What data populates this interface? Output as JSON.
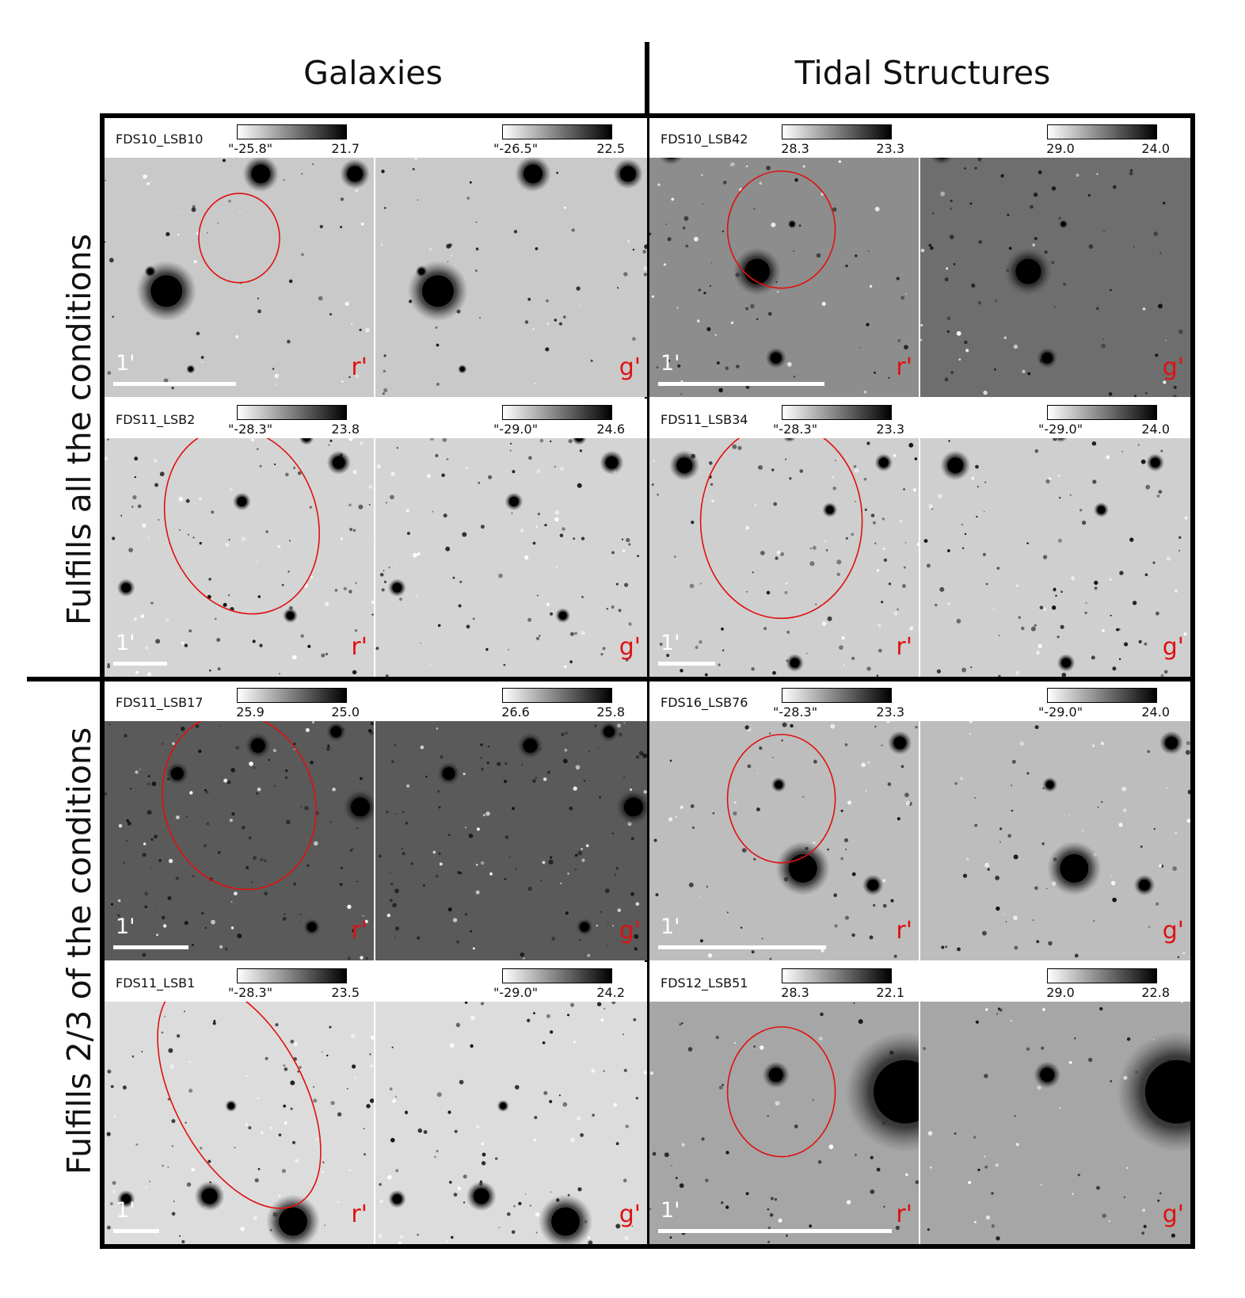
{
  "column_headers": {
    "galaxies": "Galaxies",
    "tidal": "Tidal Structures"
  },
  "row_headers": {
    "all": "Fulfills all the conditions",
    "two_thirds": "Fulfills 2/3 of the conditions"
  },
  "scale_label": "1'",
  "rows": [
    {
      "cells": [
        {
          "name": "FDS10_LSB10",
          "r": {
            "cmin": "\"-25.8\"",
            "cmax": "21.7"
          },
          "g": {
            "cmin": "\"-26.5\"",
            "cmax": "22.5"
          }
        },
        {
          "name": "FDS10_LSB42",
          "r": {
            "cmin": "28.3",
            "cmax": "23.3"
          },
          "g": {
            "cmin": "29.0",
            "cmax": "24.0"
          }
        }
      ]
    },
    {
      "cells": [
        {
          "name": "FDS11_LSB2",
          "r": {
            "cmin": "\"-28.3\"",
            "cmax": "23.8"
          },
          "g": {
            "cmin": "\"-29.0\"",
            "cmax": "24.6"
          }
        },
        {
          "name": "FDS11_LSB34",
          "r": {
            "cmin": "\"-28.3\"",
            "cmax": "23.3"
          },
          "g": {
            "cmin": "\"-29.0\"",
            "cmax": "24.0"
          }
        }
      ]
    },
    {
      "cells": [
        {
          "name": "FDS11_LSB17",
          "r": {
            "cmin": "25.9",
            "cmax": "25.0"
          },
          "g": {
            "cmin": "26.6",
            "cmax": "25.8"
          }
        },
        {
          "name": "FDS16_LSB76",
          "r": {
            "cmin": "\"-28.3\"",
            "cmax": "23.3"
          },
          "g": {
            "cmin": "\"-29.0\"",
            "cmax": "24.0"
          }
        }
      ]
    },
    {
      "cells": [
        {
          "name": "FDS11_LSB1",
          "r": {
            "cmin": "\"-28.3\"",
            "cmax": "23.5"
          },
          "g": {
            "cmin": "\"-29.0\"",
            "cmax": "24.2"
          }
        },
        {
          "name": "FDS12_LSB51",
          "r": {
            "cmin": "28.3",
            "cmax": "22.1"
          },
          "g": {
            "cmin": "29.0",
            "cmax": "22.8"
          }
        }
      ]
    }
  ],
  "bands": {
    "r": "r'",
    "g": "g'"
  },
  "colors": {
    "annotation_red": "#e01010",
    "frame": "#000000",
    "scale_bar": "#ffffff"
  }
}
